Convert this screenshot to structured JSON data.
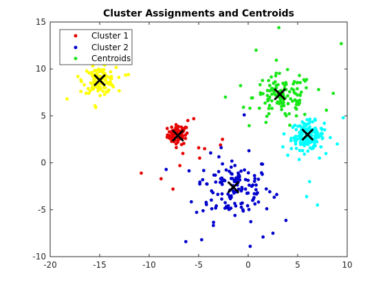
{
  "chart_data": {
    "type": "scatter",
    "title": "Cluster Assignments and Centroids",
    "xlabel": "",
    "ylabel": "",
    "xlim": [
      -20,
      10
    ],
    "ylim": [
      -10,
      15
    ],
    "xticks": [
      -20,
      -15,
      -10,
      -5,
      0,
      5,
      10
    ],
    "yticks": [
      -10,
      -5,
      0,
      5,
      10,
      15
    ],
    "x_tick_labels": [
      "-20",
      "-15",
      "-10",
      "-5",
      "0",
      "5",
      "10"
    ],
    "y_tick_labels": [
      "-10",
      "-5",
      "0",
      "5",
      "10",
      "15"
    ],
    "grid": false,
    "legend_position": "top-left",
    "legend": [
      {
        "label": "Cluster 1",
        "color": "#e60000"
      },
      {
        "label": "Cluster 2",
        "color": "#0000cc"
      },
      {
        "label": "Centroids",
        "color": "#19e619"
      }
    ],
    "clusters": [
      {
        "color": "#e60000",
        "center": [
          -7.1,
          3.0
        ],
        "spread": [
          0.7,
          0.7
        ],
        "count": 70,
        "outliers": [
          [
            -10.8,
            -1.1
          ],
          [
            -8.8,
            -1.7
          ],
          [
            -7.6,
            -2.8
          ],
          [
            -6.9,
            -0.3
          ],
          [
            -6.1,
            4.5
          ],
          [
            -5.5,
            4.7
          ],
          [
            -5.0,
            1.6
          ],
          [
            -4.4,
            1.5
          ],
          [
            -2.6,
            2.5
          ],
          [
            -2.8,
            1.9
          ],
          [
            -4.9,
            0.5
          ],
          [
            -6.6,
            1.0
          ]
        ]
      },
      {
        "color": "#0000cc",
        "center": [
          -1.5,
          -2.7
        ],
        "spread": [
          2.6,
          2.3
        ],
        "count": 130,
        "outliers": [
          [
            -6.3,
            -8.4
          ],
          [
            -4.7,
            -8.2
          ],
          [
            0.2,
            -8.9
          ],
          [
            1.5,
            -7.9
          ],
          [
            -4.6,
            -1.8
          ],
          [
            -0.4,
            5.1
          ],
          [
            2.5,
            -7.5
          ]
        ]
      },
      {
        "color": "#00ffff",
        "center": [
          6.0,
          2.9
        ],
        "spread": [
          1.1,
          1.0
        ],
        "count": 150,
        "outliers": [
          [
            9.6,
            4.8
          ],
          [
            7.2,
            0.5
          ],
          [
            6.2,
            -2.0
          ],
          [
            5.9,
            -3.6
          ],
          [
            7.0,
            -4.5
          ],
          [
            3.5,
            1.7
          ],
          [
            4.0,
            0.8
          ],
          [
            9.0,
            2.0
          ]
        ]
      },
      {
        "color": "#19e619",
        "center": [
          3.5,
          7.0
        ],
        "spread": [
          2.0,
          1.6
        ],
        "count": 120,
        "outliers": [
          [
            3.1,
            14.4
          ],
          [
            9.4,
            12.7
          ],
          [
            0.8,
            12.0
          ],
          [
            -2.3,
            7.0
          ],
          [
            8.6,
            7.4
          ],
          [
            7.9,
            5.6
          ],
          [
            4.2,
            4.0
          ],
          [
            1.8,
            4.3
          ]
        ]
      },
      {
        "color": "#ffff00",
        "center": [
          -15.0,
          8.8
        ],
        "spread": [
          1.1,
          0.9
        ],
        "count": 120,
        "outliers": [
          [
            -18.3,
            6.8
          ],
          [
            -17.2,
            9.2
          ],
          [
            -12.1,
            9.4
          ],
          [
            -15.4,
            5.9
          ],
          [
            -14.0,
            11.7
          ],
          [
            -16.9,
            7.6
          ]
        ]
      }
    ],
    "centroids": [
      {
        "x": -15.0,
        "y": 8.8
      },
      {
        "x": -7.1,
        "y": 2.9
      },
      {
        "x": -1.5,
        "y": -2.6
      },
      {
        "x": 3.2,
        "y": 7.3
      },
      {
        "x": 6.0,
        "y": 3.0
      }
    ]
  }
}
